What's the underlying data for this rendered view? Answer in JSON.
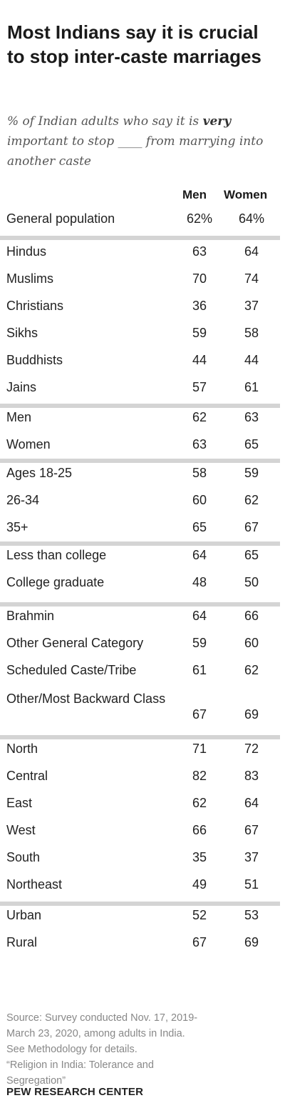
{
  "title": "Most Indians say it is crucial to stop inter-caste marriages",
  "subtitle_pre": "% of Indian adults who say it is ",
  "subtitle_bold": "very",
  "subtitle_post": " important to stop ____ from marrying into another caste",
  "columns": [
    "Men",
    "Women"
  ],
  "footer": {
    "source_lines": [
      "Source: Survey conducted Nov. 17, 2019-",
      "March 23, 2020, among adults in India.",
      "See Methodology for details.",
      "“Religion in India: Tolerance and",
      "Segregation”"
    ],
    "brand": "PEW RESEARCH CENTER"
  },
  "chart_data": {
    "type": "table",
    "columns": [
      "Men",
      "Women"
    ],
    "groups": [
      {
        "rows": [
          {
            "label": "General population",
            "men": "62%",
            "women": "64%"
          }
        ]
      },
      {
        "rows": [
          {
            "label": "Hindus",
            "men": "63",
            "women": "64"
          },
          {
            "label": "Muslims",
            "men": "70",
            "women": "74"
          },
          {
            "label": "Christians",
            "men": "36",
            "women": "37"
          },
          {
            "label": "Sikhs",
            "men": "59",
            "women": "58"
          },
          {
            "label": "Buddhists",
            "men": "44",
            "women": "44"
          },
          {
            "label": "Jains",
            "men": "57",
            "women": "61"
          }
        ]
      },
      {
        "rows": [
          {
            "label": "Men",
            "men": "62",
            "women": "63"
          },
          {
            "label": "Women",
            "men": "63",
            "women": "65"
          }
        ]
      },
      {
        "rows": [
          {
            "label": "Ages 18-25",
            "men": "58",
            "women": "59"
          },
          {
            "label": "26-34",
            "men": "60",
            "women": "62"
          },
          {
            "label": "35+",
            "men": "65",
            "women": "67"
          }
        ]
      },
      {
        "rows": [
          {
            "label": "Less than college",
            "men": "64",
            "women": "65"
          },
          {
            "label": "College graduate",
            "men": "48",
            "women": "50"
          }
        ]
      },
      {
        "rows": [
          {
            "label": "Brahmin",
            "men": "64",
            "women": "66"
          },
          {
            "label": "Other General Category",
            "men": "59",
            "women": "60"
          },
          {
            "label": "Scheduled Caste/Tribe",
            "men": "61",
            "women": "62"
          },
          {
            "label": "Other/Most Backward Class",
            "men": "67",
            "women": "69"
          }
        ]
      },
      {
        "rows": [
          {
            "label": "North",
            "men": "71",
            "women": "72"
          },
          {
            "label": "Central",
            "men": "82",
            "women": "83"
          },
          {
            "label": "East",
            "men": "62",
            "women": "64"
          },
          {
            "label": "West",
            "men": "66",
            "women": "67"
          },
          {
            "label": "South",
            "men": "35",
            "women": "37"
          },
          {
            "label": "Northeast",
            "men": "49",
            "women": "51"
          }
        ]
      },
      {
        "rows": [
          {
            "label": "Urban",
            "men": "52",
            "women": "53"
          },
          {
            "label": "Rural",
            "men": "67",
            "women": "69"
          }
        ]
      }
    ]
  }
}
